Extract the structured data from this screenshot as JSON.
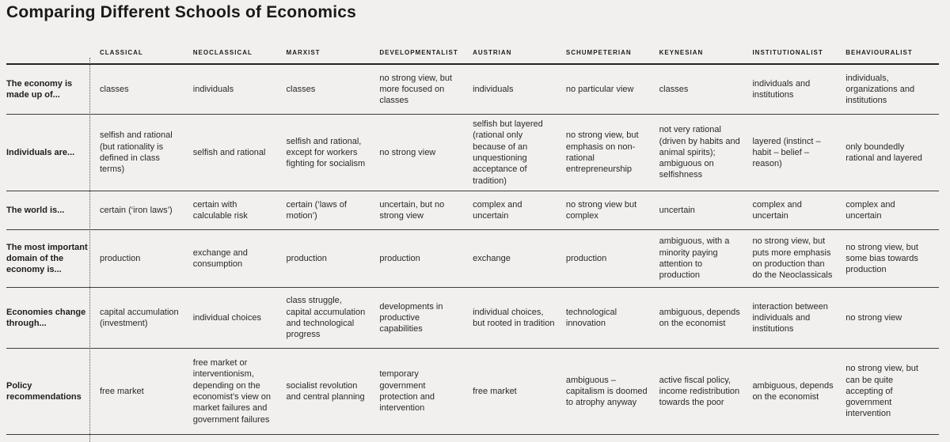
{
  "title": "Comparing Different Schools of Economics",
  "table": {
    "columns": [
      "Classical",
      "Neoclassical",
      "Marxist",
      "Developmentalist",
      "Austrian",
      "Schumpeterian",
      "Keynesian",
      "Institutionalist",
      "Behaviouralist"
    ],
    "rows": [
      {
        "label": "The economy is made up of...",
        "cells": [
          "classes",
          "individuals",
          "classes",
          "no strong view, but more focused on classes",
          "individuals",
          "no particular view",
          "classes",
          "individuals and institutions",
          "individuals, organizations and institutions"
        ]
      },
      {
        "label": "Individuals are...",
        "cells": [
          "selfish and rational (but rationality is defined in class terms)",
          "selfish and rational",
          "selfish and rational, except for workers fighting for socialism",
          "no strong view",
          "selfish but layered (rational only because of an unquestioning acceptance of tradition)",
          "no strong view, but emphasis on non-rational entrepreneurship",
          "not very rational (driven by habits and animal spirits); ambiguous on selfishness",
          "layered (instinct – habit – belief – reason)",
          "only boundedly rational and layered"
        ]
      },
      {
        "label": "The world is...",
        "cells": [
          "certain (‘iron laws’)",
          "certain with calculable risk",
          "certain (‘laws of motion’)",
          "uncertain, but no strong view",
          "complex and uncertain",
          "no strong view but complex",
          "uncertain",
          "complex and uncertain",
          "complex and uncertain"
        ]
      },
      {
        "label": "The most important domain of the economy is...",
        "cells": [
          "production",
          "exchange and consumption",
          "production",
          "production",
          "exchange",
          "production",
          "ambiguous, with a minority paying attention to production",
          "no strong view, but puts more emphasis on production than do the Neoclassicals",
          "no strong view, but some bias towards production"
        ]
      },
      {
        "label": "Economies change through...",
        "cells": [
          "capital accumulation (investment)",
          "individual choices",
          "class struggle, capital accumulation and technological progress",
          "developments in productive capabilities",
          "individual choices, but rooted in tradition",
          "technological innovation",
          "ambiguous, depends on the economist",
          "interaction between individuals and institutions",
          "no strong view"
        ]
      },
      {
        "label": "Policy recommendations",
        "cells": [
          "free market",
          "free market or interventionism, depending on the economist’s view on market failures and government failures",
          "socialist revolution and central planning",
          "temporary government protection and intervention",
          "free market",
          "ambiguous – capitalism is doomed to atrophy anyway",
          "active fiscal policy, income redistribution towards the poor",
          "ambiguous, depends on the economist",
          "no strong view, but can be quite accepting of government intervention"
        ]
      }
    ]
  },
  "colors": {
    "background": "#f1f0ee",
    "text": "#2a2927",
    "rule": "#3e3d3b",
    "header_rule": "#242321"
  }
}
